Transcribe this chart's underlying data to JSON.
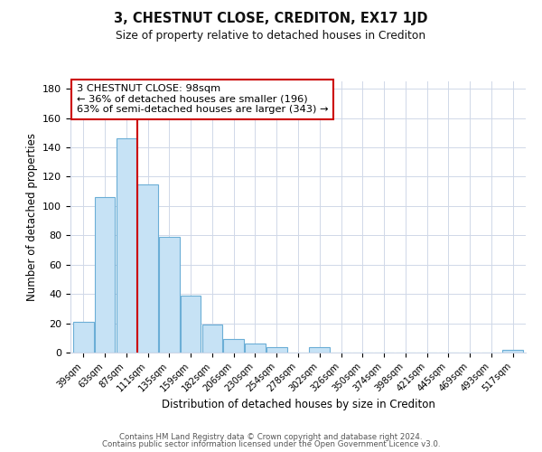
{
  "title": "3, CHESTNUT CLOSE, CREDITON, EX17 1JD",
  "subtitle": "Size of property relative to detached houses in Crediton",
  "xlabel": "Distribution of detached houses by size in Crediton",
  "ylabel": "Number of detached properties",
  "bar_color": "#c6e2f5",
  "bar_edge_color": "#6baed6",
  "bar_categories": [
    "39sqm",
    "63sqm",
    "87sqm",
    "111sqm",
    "135sqm",
    "159sqm",
    "182sqm",
    "206sqm",
    "230sqm",
    "254sqm",
    "278sqm",
    "302sqm",
    "326sqm",
    "350sqm",
    "374sqm",
    "398sqm",
    "421sqm",
    "445sqm",
    "469sqm",
    "493sqm",
    "517sqm"
  ],
  "bar_values": [
    21,
    106,
    146,
    115,
    79,
    39,
    19,
    9,
    6,
    4,
    0,
    4,
    0,
    0,
    0,
    0,
    0,
    0,
    0,
    0,
    2
  ],
  "vline_x": 2.5,
  "vline_color": "#cc0000",
  "ylim": [
    0,
    185
  ],
  "yticks": [
    0,
    20,
    40,
    60,
    80,
    100,
    120,
    140,
    160,
    180
  ],
  "annotation_box_text": "3 CHESTNUT CLOSE: 98sqm\n← 36% of detached houses are smaller (196)\n63% of semi-detached houses are larger (343) →",
  "footer1": "Contains HM Land Registry data © Crown copyright and database right 2024.",
  "footer2": "Contains public sector information licensed under the Open Government Licence v3.0.",
  "background_color": "#ffffff",
  "grid_color": "#d0d8e8"
}
